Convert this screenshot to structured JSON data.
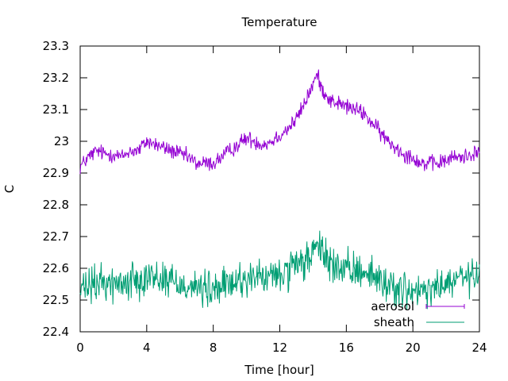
{
  "chart_data": {
    "type": "line",
    "title": "Temperature",
    "xlabel": "Time [hour]",
    "ylabel": "C",
    "xlim": [
      0,
      24
    ],
    "ylim": [
      22.4,
      23.3
    ],
    "xticks": [
      "0",
      "4",
      "8",
      "12",
      "16",
      "20",
      "24"
    ],
    "yticks": [
      "22.4",
      "22.5",
      "22.6",
      "22.7",
      "22.8",
      "22.9",
      "23",
      "23.1",
      "23.2",
      "23.3"
    ],
    "grid": false,
    "legend_position": "bottom-right",
    "series": [
      {
        "name": "aerosol",
        "color": "#9400d3",
        "x": [
          0,
          0.5,
          1,
          1.5,
          2,
          2.5,
          3,
          3.5,
          4,
          4.5,
          5,
          5.5,
          6,
          6.5,
          7,
          7.5,
          8,
          8.5,
          9,
          9.5,
          10,
          10.5,
          11,
          11.5,
          12,
          12.5,
          13,
          13.5,
          14,
          14.25,
          14.5,
          15,
          15.5,
          16,
          16.5,
          17,
          17.5,
          18,
          18.5,
          19,
          19.5,
          20,
          20.5,
          21,
          21.5,
          22,
          22.5,
          23,
          23.5,
          24
        ],
        "values": [
          22.92,
          22.95,
          22.97,
          22.96,
          22.96,
          22.95,
          22.97,
          22.97,
          23.0,
          22.99,
          22.98,
          22.97,
          22.96,
          22.95,
          22.93,
          22.93,
          22.93,
          22.95,
          22.97,
          22.99,
          23.01,
          23.0,
          22.99,
          23.0,
          23.02,
          23.04,
          23.07,
          23.12,
          23.18,
          23.21,
          23.17,
          23.13,
          23.12,
          23.11,
          23.1,
          23.09,
          23.06,
          23.03,
          23.0,
          22.98,
          22.96,
          22.95,
          22.93,
          22.93,
          22.93,
          22.94,
          22.95,
          22.95,
          22.96,
          22.97
        ]
      },
      {
        "name": "sheath",
        "color": "#009e73",
        "x": [
          0,
          0.5,
          1,
          1.5,
          2,
          2.5,
          3,
          3.5,
          4,
          4.5,
          5,
          5.5,
          6,
          6.5,
          7,
          7.5,
          8,
          8.5,
          9,
          9.5,
          10,
          10.5,
          11,
          11.5,
          12,
          12.5,
          13,
          13.5,
          14,
          14.5,
          15,
          15.5,
          16,
          16.5,
          17,
          17.5,
          18,
          18.5,
          19,
          19.5,
          20,
          20.5,
          21,
          21.5,
          22,
          22.5,
          23,
          23.5,
          24
        ],
        "values": [
          22.53,
          22.54,
          22.55,
          22.56,
          22.55,
          22.55,
          22.56,
          22.57,
          22.58,
          22.57,
          22.57,
          22.56,
          22.55,
          22.55,
          22.54,
          22.53,
          22.53,
          22.54,
          22.55,
          22.56,
          22.57,
          22.57,
          22.57,
          22.57,
          22.58,
          22.59,
          22.6,
          22.62,
          22.65,
          22.66,
          22.62,
          22.6,
          22.59,
          22.59,
          22.6,
          22.58,
          22.56,
          22.55,
          22.54,
          22.53,
          22.52,
          22.52,
          22.53,
          22.54,
          22.55,
          22.56,
          22.57,
          22.57,
          22.58
        ]
      }
    ]
  }
}
